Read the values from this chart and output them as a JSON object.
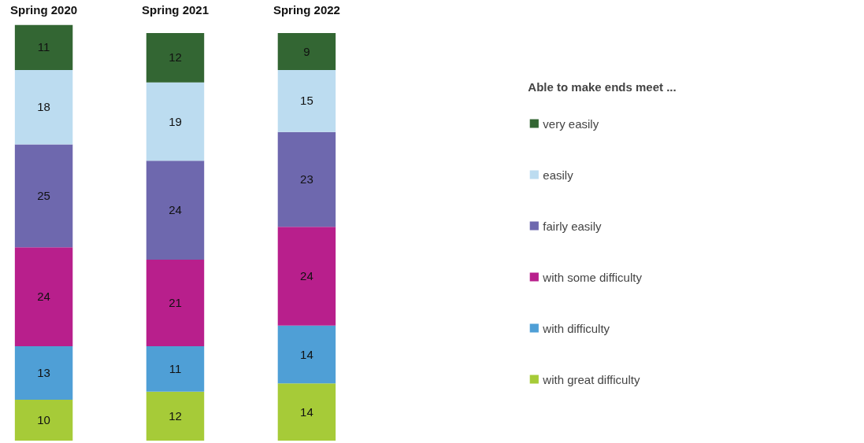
{
  "chart_data": {
    "type": "bar",
    "stacked": true,
    "data_labels": true,
    "legend": "right",
    "legend_title": "Able to make ends meet ...",
    "categories": [
      "Spring 2020",
      "Spring 2021",
      "Spring 2022"
    ],
    "series": [
      {
        "name": "with great difficulty",
        "color": "#a6cb38",
        "values": [
          10,
          12,
          14
        ]
      },
      {
        "name": "with difficulty",
        "color": "#4f9fd6",
        "values": [
          13,
          11,
          14
        ]
      },
      {
        "name": "with some difficulty",
        "color": "#b81f8c",
        "values": [
          24,
          21,
          24
        ]
      },
      {
        "name": "fairly easily",
        "color": "#6e68ae",
        "values": [
          25,
          24,
          23
        ]
      },
      {
        "name": "easily",
        "color": "#bcdcf0",
        "values": [
          18,
          19,
          15
        ]
      },
      {
        "name": "very easily",
        "color": "#336633",
        "values": [
          11,
          12,
          9
        ]
      }
    ]
  }
}
